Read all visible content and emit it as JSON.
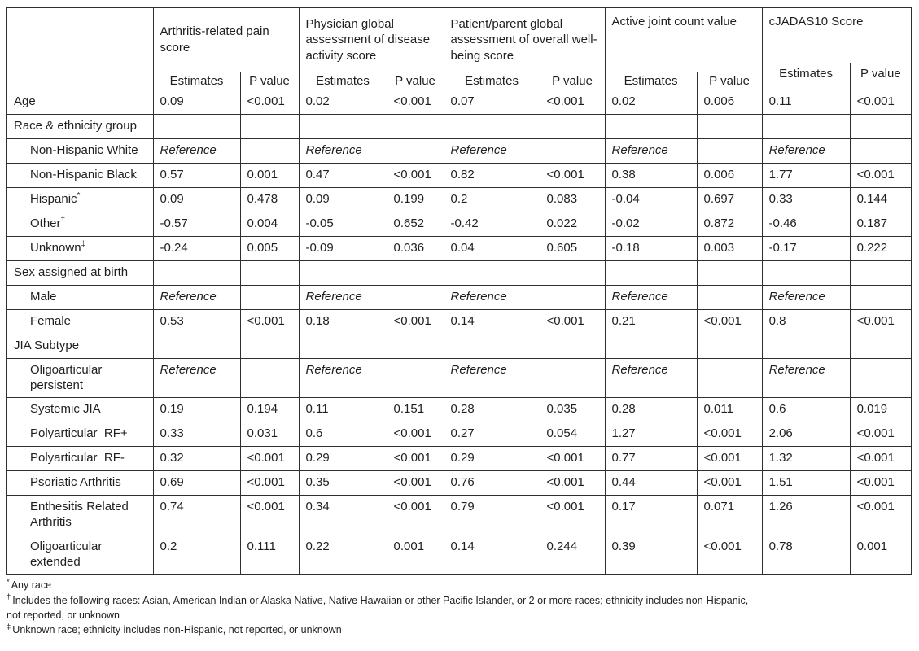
{
  "table": {
    "corner_label": "",
    "sections": [
      {
        "title": "Arthritis-related pain score"
      },
      {
        "title": "Physician global assessment of disease activity score"
      },
      {
        "title": "Patient/parent global assessment of overall well-being score"
      },
      {
        "title": "Active joint count value"
      },
      {
        "title": "cJADAS10 Score"
      }
    ],
    "sub": {
      "estimates": "Estimates",
      "p_value": "P value"
    },
    "rows": [
      {
        "label": "Age",
        "sup": "",
        "indent": false,
        "type": "data",
        "cells": [
          [
            "0.09",
            ""
          ],
          [
            "<0.001",
            "b"
          ],
          [
            "0.02",
            ""
          ],
          [
            "<0.001",
            "b"
          ],
          [
            "0.07",
            ""
          ],
          [
            "<0.001",
            "b"
          ],
          [
            "0.02",
            ""
          ],
          [
            "0.006",
            "b"
          ],
          [
            "0.11",
            ""
          ],
          [
            "<0.001",
            "b"
          ]
        ]
      },
      {
        "label": "Race & ethnicity group",
        "sup": "",
        "indent": false,
        "type": "category",
        "cells": [
          [
            "",
            ""
          ],
          [
            "",
            ""
          ],
          [
            "",
            ""
          ],
          [
            "",
            ""
          ],
          [
            "",
            ""
          ],
          [
            "",
            ""
          ],
          [
            "",
            ""
          ],
          [
            "",
            ""
          ],
          [
            "",
            ""
          ],
          [
            "",
            ""
          ]
        ]
      },
      {
        "label": "Non-Hispanic White",
        "sup": "",
        "indent": true,
        "type": "reference",
        "cells": [
          [
            "Reference",
            "i"
          ],
          [
            "",
            ""
          ],
          [
            "Reference",
            "i"
          ],
          [
            "",
            ""
          ],
          [
            "Reference",
            "i"
          ],
          [
            "",
            ""
          ],
          [
            "Reference",
            "i"
          ],
          [
            "",
            ""
          ],
          [
            "Reference",
            "i"
          ],
          [
            "",
            ""
          ]
        ]
      },
      {
        "label": "Non-Hispanic Black",
        "sup": "",
        "indent": true,
        "type": "data",
        "cells": [
          [
            "0.57",
            ""
          ],
          [
            "0.001",
            "b"
          ],
          [
            "0.47",
            ""
          ],
          [
            "<0.001",
            "b"
          ],
          [
            "0.82",
            ""
          ],
          [
            "<0.001",
            "b"
          ],
          [
            "0.38",
            ""
          ],
          [
            "0.006",
            "b"
          ],
          [
            "1.77",
            ""
          ],
          [
            "<0.001",
            "b"
          ]
        ]
      },
      {
        "label": "Hispanic",
        "sup": "*",
        "indent": true,
        "type": "data",
        "cells": [
          [
            "0.09",
            ""
          ],
          [
            "0.478",
            ""
          ],
          [
            "0.09",
            ""
          ],
          [
            "0.199",
            ""
          ],
          [
            "0.2",
            ""
          ],
          [
            "0.083",
            ""
          ],
          [
            "-0.04",
            ""
          ],
          [
            "0.697",
            ""
          ],
          [
            "0.33",
            ""
          ],
          [
            "0.144",
            ""
          ]
        ]
      },
      {
        "label": "Other",
        "sup": "†",
        "indent": true,
        "type": "data",
        "cells": [
          [
            "-0.57",
            ""
          ],
          [
            "0.004",
            "b"
          ],
          [
            "-0.05",
            ""
          ],
          [
            "0.652",
            ""
          ],
          [
            "-0.42",
            ""
          ],
          [
            "0.022",
            "b"
          ],
          [
            "-0.02",
            ""
          ],
          [
            "0.872",
            ""
          ],
          [
            "-0.46",
            ""
          ],
          [
            "0.187",
            ""
          ]
        ]
      },
      {
        "label": "Unknown",
        "sup": "‡",
        "indent": true,
        "type": "data",
        "cells": [
          [
            "-0.24",
            ""
          ],
          [
            "0.005",
            "b"
          ],
          [
            "-0.09",
            ""
          ],
          [
            "0.036",
            "b"
          ],
          [
            "0.04",
            ""
          ],
          [
            "0.605",
            ""
          ],
          [
            "-0.18",
            ""
          ],
          [
            "0.003",
            "b"
          ],
          [
            "-0.17",
            ""
          ],
          [
            "0.222",
            ""
          ]
        ]
      },
      {
        "label": "Sex assigned at birth",
        "sup": "",
        "indent": false,
        "type": "category",
        "cells": [
          [
            "",
            ""
          ],
          [
            "",
            ""
          ],
          [
            "",
            ""
          ],
          [
            "",
            ""
          ],
          [
            "",
            ""
          ],
          [
            "",
            ""
          ],
          [
            "",
            ""
          ],
          [
            "",
            ""
          ],
          [
            "",
            ""
          ],
          [
            "",
            ""
          ]
        ]
      },
      {
        "label": "Male",
        "sup": "",
        "indent": true,
        "type": "reference",
        "cells": [
          [
            "Reference",
            "i"
          ],
          [
            "",
            ""
          ],
          [
            "Reference",
            "i"
          ],
          [
            "",
            ""
          ],
          [
            "Reference",
            "i"
          ],
          [
            "",
            ""
          ],
          [
            "Reference",
            "i"
          ],
          [
            "",
            ""
          ],
          [
            "Reference",
            "i"
          ],
          [
            "",
            ""
          ]
        ]
      },
      {
        "label": "Female",
        "sup": "",
        "indent": true,
        "type": "data",
        "dashed_bottom": true,
        "cells": [
          [
            "0.53",
            ""
          ],
          [
            "<0.001",
            "b"
          ],
          [
            "0.18",
            ""
          ],
          [
            "<0.001",
            "b"
          ],
          [
            "0.14",
            ""
          ],
          [
            "<0.001",
            "b"
          ],
          [
            "0.21",
            ""
          ],
          [
            "<0.001",
            "b"
          ],
          [
            "0.8",
            ""
          ],
          [
            "<0.001",
            "b"
          ]
        ]
      },
      {
        "label": "JIA Subtype",
        "sup": "",
        "indent": false,
        "type": "category",
        "cells": [
          [
            "",
            ""
          ],
          [
            "",
            ""
          ],
          [
            "",
            ""
          ],
          [
            "",
            ""
          ],
          [
            "",
            ""
          ],
          [
            "",
            ""
          ],
          [
            "",
            ""
          ],
          [
            "",
            ""
          ],
          [
            "",
            ""
          ],
          [
            "",
            ""
          ]
        ]
      },
      {
        "label": "Oligoarticular persistent",
        "sup": "",
        "indent": true,
        "type": "reference",
        "cells": [
          [
            "Reference",
            "i"
          ],
          [
            "",
            ""
          ],
          [
            "Reference",
            "i"
          ],
          [
            "",
            ""
          ],
          [
            "Reference",
            "i"
          ],
          [
            "",
            ""
          ],
          [
            "Reference",
            "i"
          ],
          [
            "",
            ""
          ],
          [
            "Reference",
            "i"
          ],
          [
            "",
            ""
          ]
        ]
      },
      {
        "label": "Systemic JIA",
        "sup": "",
        "indent": true,
        "type": "data",
        "cells": [
          [
            "0.19",
            ""
          ],
          [
            "0.194",
            ""
          ],
          [
            "0.11",
            ""
          ],
          [
            "0.151",
            ""
          ],
          [
            "0.28",
            ""
          ],
          [
            "0.035",
            "b"
          ],
          [
            "0.28",
            ""
          ],
          [
            "0.011",
            "b"
          ],
          [
            "0.6",
            ""
          ],
          [
            "0.019",
            "b"
          ]
        ]
      },
      {
        "label": "Polyarticular  RF+",
        "sup": "",
        "indent": true,
        "type": "data",
        "cells": [
          [
            "0.33",
            ""
          ],
          [
            "0.031",
            "b"
          ],
          [
            "0.6",
            ""
          ],
          [
            "<0.001",
            "b"
          ],
          [
            "0.27",
            ""
          ],
          [
            "0.054",
            ""
          ],
          [
            "1.27",
            ""
          ],
          [
            "<0.001",
            "b"
          ],
          [
            "2.06",
            ""
          ],
          [
            "<0.001",
            "b"
          ]
        ]
      },
      {
        "label": "Polyarticular  RF-",
        "sup": "",
        "indent": true,
        "type": "data",
        "cells": [
          [
            "0.32",
            ""
          ],
          [
            "<0.001",
            "b"
          ],
          [
            "0.29",
            ""
          ],
          [
            "<0.001",
            "b"
          ],
          [
            "0.29",
            ""
          ],
          [
            "<0.001",
            "b"
          ],
          [
            "0.77",
            ""
          ],
          [
            "<0.001",
            "b"
          ],
          [
            "1.32",
            ""
          ],
          [
            "<0.001",
            "b"
          ]
        ]
      },
      {
        "label": "Psoriatic Arthritis",
        "sup": "",
        "indent": true,
        "type": "data",
        "cells": [
          [
            "0.69",
            ""
          ],
          [
            "<0.001",
            "b"
          ],
          [
            "0.35",
            ""
          ],
          [
            "<0.001",
            "b"
          ],
          [
            "0.76",
            ""
          ],
          [
            "<0.001",
            "b"
          ],
          [
            "0.44",
            ""
          ],
          [
            "<0.001",
            "b"
          ],
          [
            "1.51",
            ""
          ],
          [
            "<0.001",
            "b"
          ]
        ]
      },
      {
        "label": "Enthesitis Related Arthritis",
        "sup": "",
        "indent": true,
        "type": "data",
        "cells": [
          [
            "0.74",
            ""
          ],
          [
            "<0.001",
            "b"
          ],
          [
            "0.34",
            ""
          ],
          [
            "<0.001",
            "b"
          ],
          [
            "0.79",
            ""
          ],
          [
            "<0.001",
            "b"
          ],
          [
            "0.17",
            ""
          ],
          [
            "0.071",
            ""
          ],
          [
            "1.26",
            ""
          ],
          [
            "<0.001",
            "b"
          ]
        ]
      },
      {
        "label": "Oligoarticular extended",
        "sup": "",
        "indent": true,
        "type": "data",
        "cells": [
          [
            "0.2",
            ""
          ],
          [
            "0.111",
            ""
          ],
          [
            "0.22",
            ""
          ],
          [
            "0.001",
            "b"
          ],
          [
            "0.14",
            ""
          ],
          [
            "0.244",
            ""
          ],
          [
            "0.39",
            ""
          ],
          [
            "<0.001",
            "b"
          ],
          [
            "0.78",
            ""
          ],
          [
            "0.001",
            "b"
          ]
        ]
      }
    ]
  },
  "footnotes": {
    "lines": [
      {
        "sup": "*",
        "text": "Any race"
      },
      {
        "sup": "†",
        "text": "Includes the following races: Asian, American Indian or Alaska Native, Native Hawaiian or other Pacific Islander, or 2 or more races; ethnicity includes non-Hispanic,"
      },
      {
        "sup": "",
        "text": "not reported, or unknown"
      },
      {
        "sup": "‡",
        "text": "Unknown race; ethnicity includes non-Hispanic, not reported, or unknown"
      }
    ]
  },
  "colors": {
    "background": "#ffffff",
    "text": "#1f1f1f",
    "border": "#2f2f2f",
    "dashed_divider": "#9a9a9a"
  }
}
